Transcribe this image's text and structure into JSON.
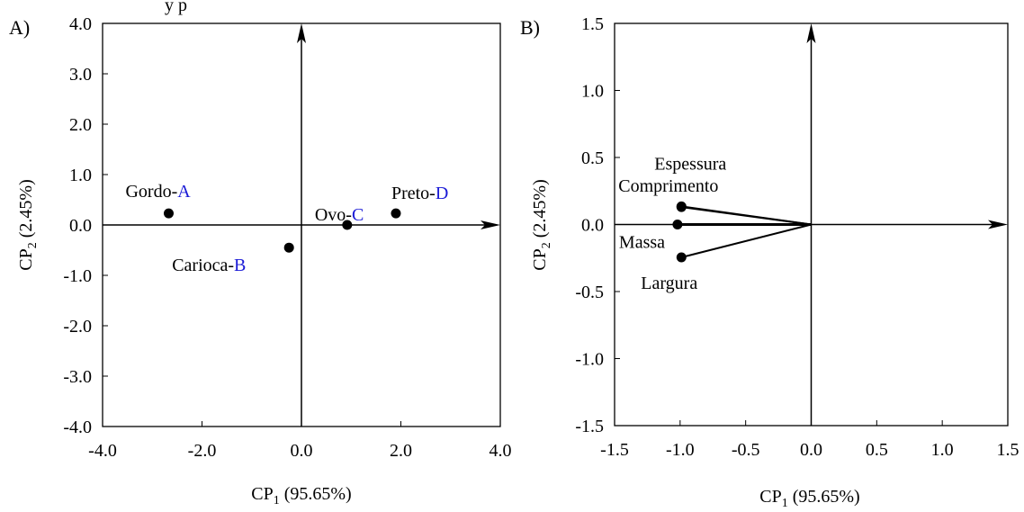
{
  "caption_fragment": "y   p",
  "panels": [
    {
      "letter": "A)",
      "chart_data": {
        "type": "scatter",
        "xlabel": "CP",
        "xlabel_sub": "1",
        "xlabel_rest": " (95.65%)",
        "ylabel": "CP",
        "ylabel_sub": "2",
        "ylabel_rest": "  (2.45%)",
        "xlim": [
          -4.0,
          4.0
        ],
        "ylim": [
          -4.0,
          4.0
        ],
        "xticks": [
          "-4.0",
          "-2.0",
          "0.0",
          "2.0",
          "4.0"
        ],
        "xtick_values": [
          -4,
          -2,
          0,
          2,
          4
        ],
        "yticks": [
          "4.0",
          "3.0",
          "2.0",
          "1.0",
          "0.0",
          "-1.0",
          "-2.0",
          "-3.0",
          "-4.0"
        ],
        "ytick_values": [
          4,
          3,
          2,
          1,
          0,
          -1,
          -2,
          -3,
          -4
        ],
        "points": [
          {
            "name": "Gordo-",
            "letter": "A",
            "x": -2.67,
            "y": 0.23
          },
          {
            "name": "Carioca-",
            "letter": "B",
            "x": -0.25,
            "y": -0.45
          },
          {
            "name": "Ovo-",
            "letter": "C",
            "x": 0.92,
            "y": 0.0
          },
          {
            "name": "Preto-",
            "letter": "D",
            "x": 1.9,
            "y": 0.23
          }
        ],
        "letter_color": "#1a1ad6"
      }
    },
    {
      "letter": "B)",
      "chart_data": {
        "type": "scatter",
        "xlabel": "CP",
        "xlabel_sub": "1",
        "xlabel_rest": " (95.65%)",
        "ylabel": "CP",
        "ylabel_sub": "2",
        "ylabel_rest": "  (2.45%)",
        "xlim": [
          -1.5,
          1.5
        ],
        "ylim": [
          -1.5,
          1.5
        ],
        "xticks": [
          "-1.5",
          "-1.0",
          "-0.5",
          "0.0",
          "0.5",
          "1.0",
          "1.5"
        ],
        "xtick_values": [
          -1.5,
          -1.0,
          -0.5,
          0.0,
          0.5,
          1.0,
          1.5
        ],
        "yticks": [
          "1.5",
          "1.0",
          "0.5",
          "0.0",
          "-0.5",
          "-1.0",
          "-1.5"
        ],
        "ytick_values": [
          1.5,
          1.0,
          0.5,
          0.0,
          -0.5,
          -1.0,
          -1.5
        ],
        "loadings": [
          {
            "name": "Espessura",
            "x": -0.99,
            "y": 0.135
          },
          {
            "name": "Comprimento",
            "x": -0.99,
            "y": 0.13
          },
          {
            "name": "Massa",
            "x": -1.02,
            "y": 0.0
          },
          {
            "name": "Largura",
            "x": -0.99,
            "y": -0.245
          }
        ]
      }
    }
  ]
}
